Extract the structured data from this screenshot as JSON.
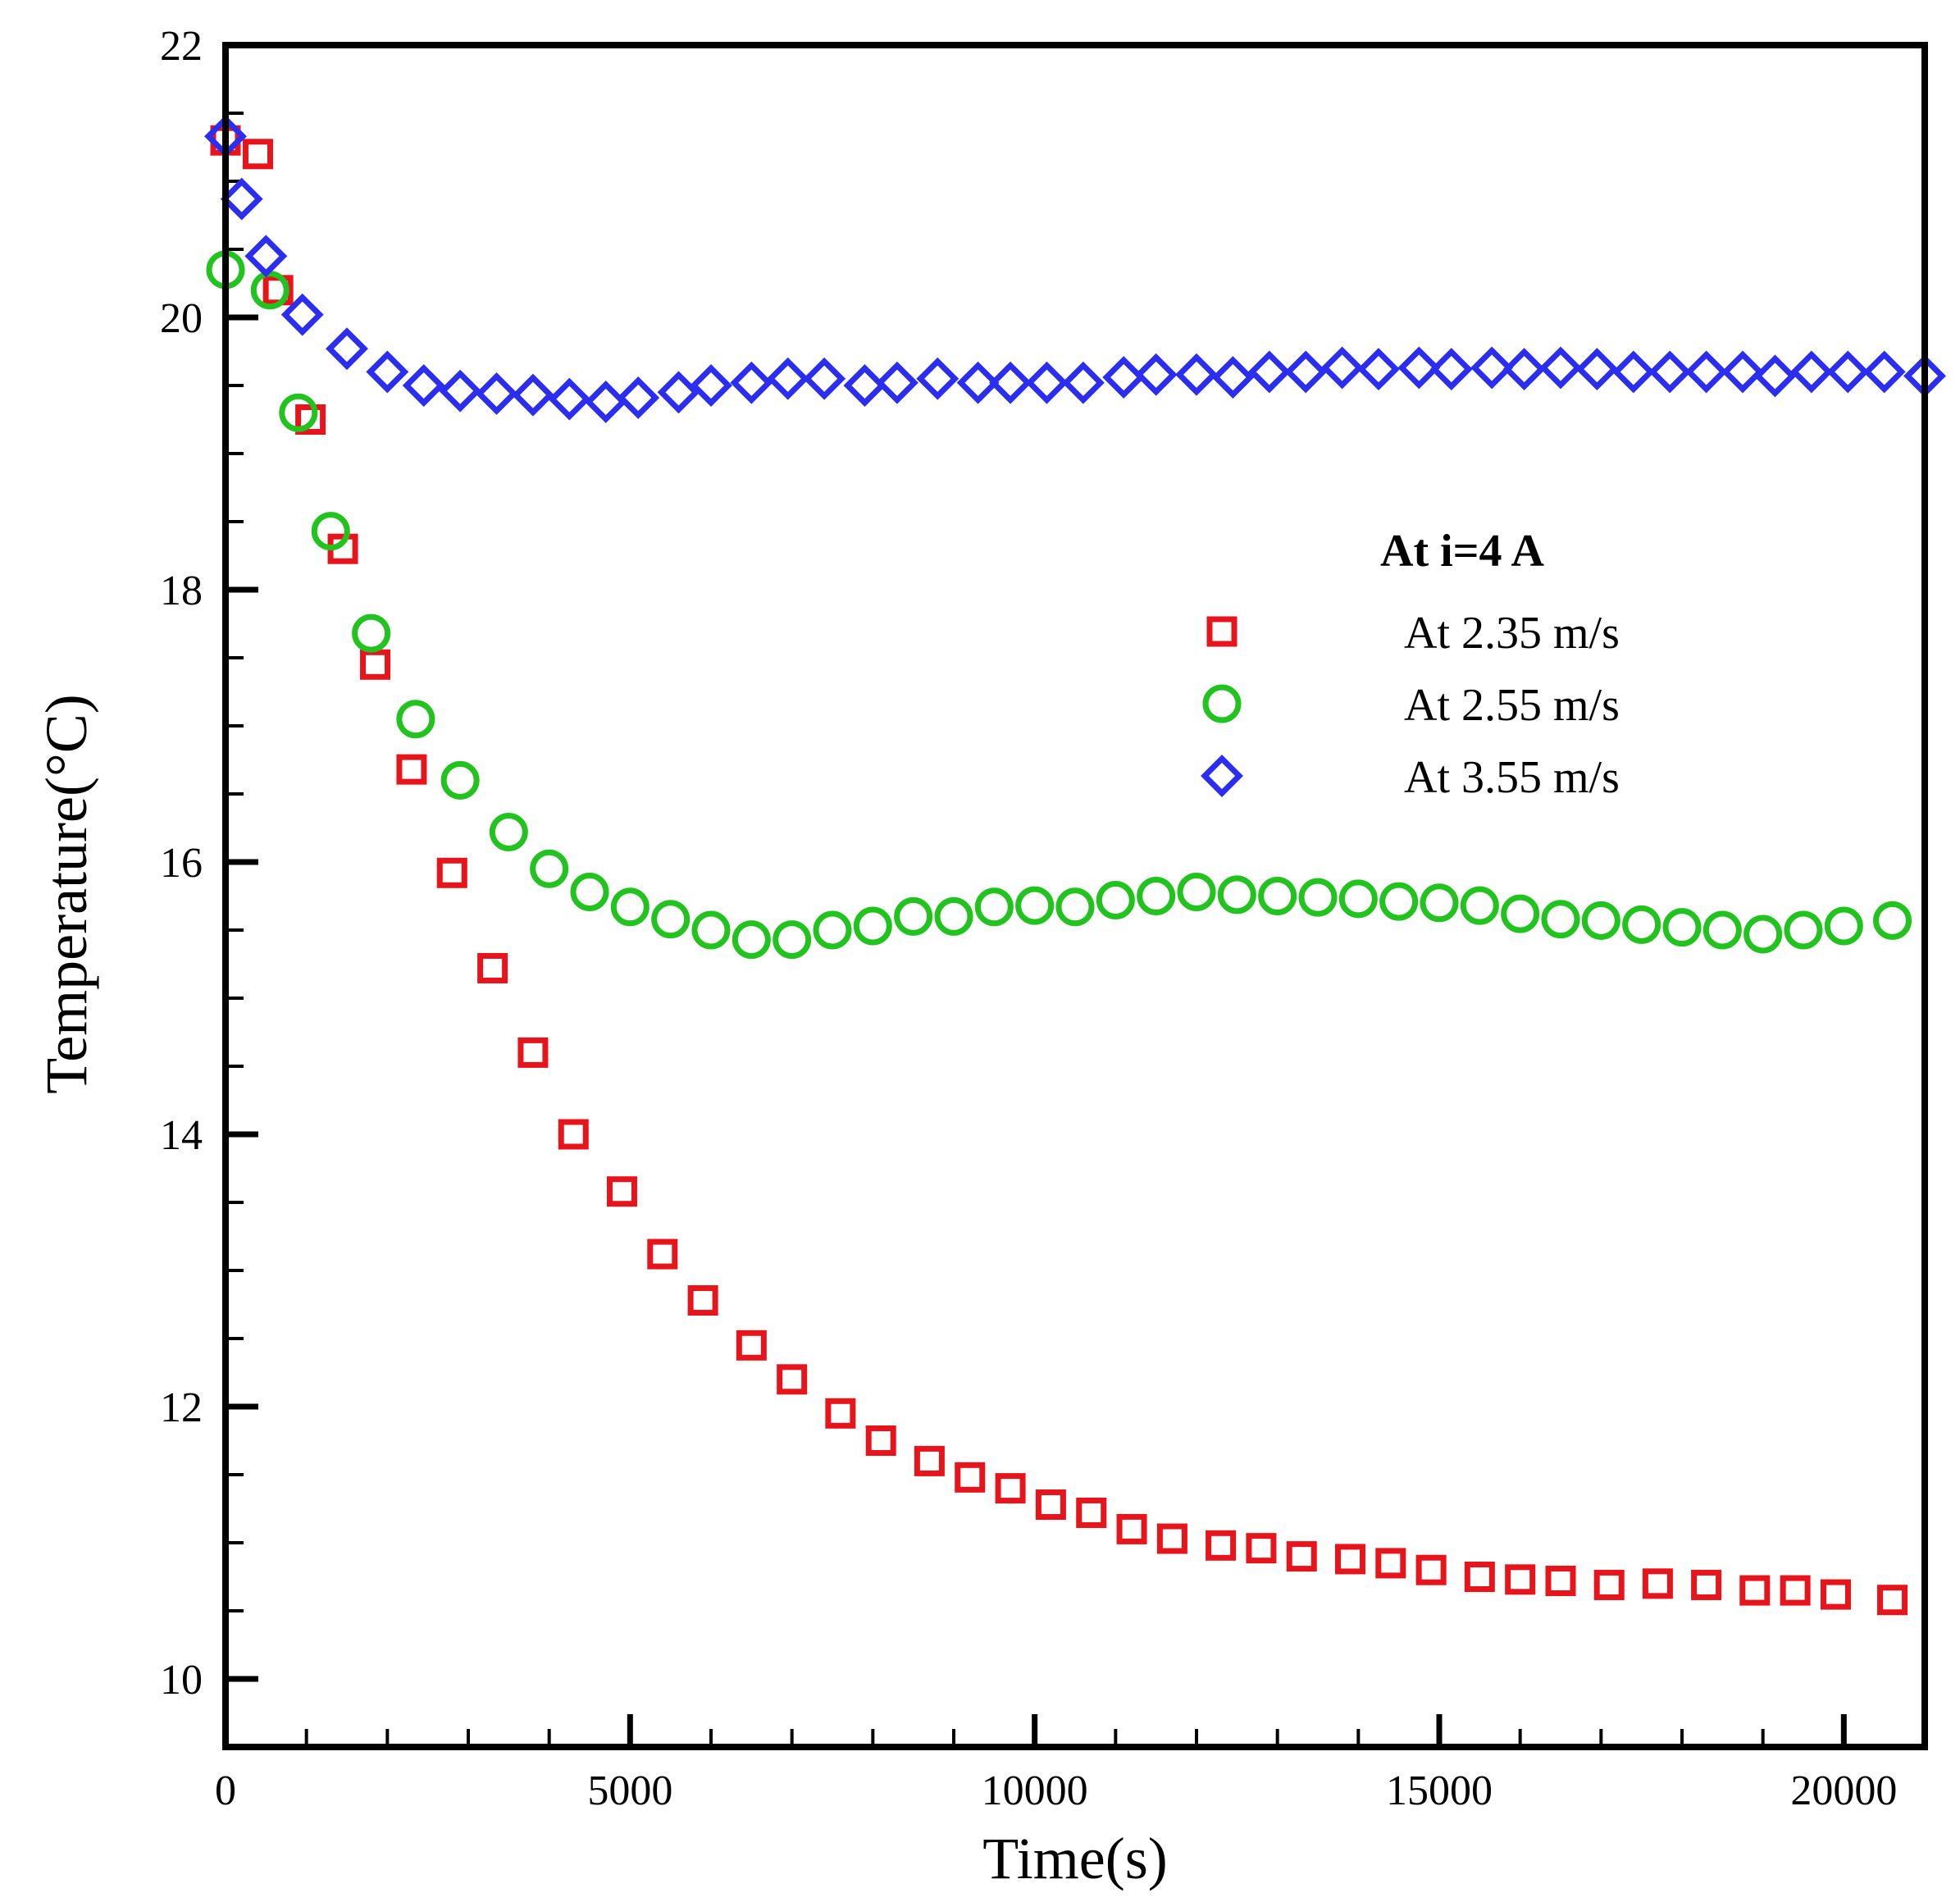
{
  "chart_data": {
    "type": "scatter",
    "xlabel": "Time(s)",
    "ylabel": "Temperature(°C)",
    "xlim": [
      0,
      21000
    ],
    "ylim": [
      9.5,
      22
    ],
    "x_ticks": [
      0,
      5000,
      10000,
      15000,
      20000
    ],
    "y_ticks": [
      10,
      12,
      14,
      16,
      18,
      20,
      22
    ],
    "grid": false,
    "legend_title": "At i=4 A",
    "legend_position": "right",
    "series": [
      {
        "name": "At 2.35 m/s",
        "marker": "square",
        "color": "#e8141c",
        "x": [
          0,
          400,
          650,
          1050,
          1450,
          1850,
          2300,
          2800,
          3300,
          3800,
          4300,
          4900,
          5400,
          5900,
          6500,
          7000,
          7600,
          8100,
          8700,
          9200,
          9700,
          10200,
          10700,
          11200,
          11700,
          12300,
          12800,
          13300,
          13900,
          14400,
          14900,
          15500,
          16000,
          16500,
          17100,
          17700,
          18300,
          18900,
          19400,
          19900,
          20600
        ],
        "y": [
          21.3,
          21.2,
          20.2,
          19.25,
          18.3,
          17.45,
          16.68,
          15.92,
          15.22,
          14.6,
          14.0,
          13.58,
          13.12,
          12.78,
          12.45,
          12.2,
          11.95,
          11.75,
          11.6,
          11.48,
          11.4,
          11.28,
          11.22,
          11.1,
          11.03,
          10.98,
          10.96,
          10.9,
          10.88,
          10.85,
          10.8,
          10.75,
          10.73,
          10.72,
          10.69,
          10.7,
          10.69,
          10.65,
          10.65,
          10.62,
          10.58
        ]
      },
      {
        "name": "At 2.55 m/s",
        "marker": "circle",
        "color": "#22c31f",
        "x": [
          0,
          550,
          900,
          1300,
          1800,
          2350,
          2900,
          3500,
          4000,
          4500,
          5000,
          5500,
          6000,
          6500,
          7000,
          7500,
          8000,
          8500,
          9000,
          9500,
          10000,
          10500,
          11000,
          11500,
          12000,
          12500,
          13000,
          13500,
          14000,
          14500,
          15000,
          15500,
          16000,
          16500,
          17000,
          17500,
          18000,
          18500,
          19000,
          19500,
          20000,
          20600
        ],
        "y": [
          20.35,
          20.2,
          19.3,
          18.43,
          17.68,
          17.05,
          16.6,
          16.22,
          15.95,
          15.78,
          15.67,
          15.58,
          15.5,
          15.43,
          15.43,
          15.5,
          15.53,
          15.6,
          15.6,
          15.67,
          15.68,
          15.67,
          15.72,
          15.75,
          15.78,
          15.76,
          15.75,
          15.74,
          15.73,
          15.71,
          15.7,
          15.68,
          15.62,
          15.58,
          15.57,
          15.54,
          15.52,
          15.5,
          15.47,
          15.5,
          15.53,
          15.57
        ]
      },
      {
        "name": "At 3.55 m/s",
        "marker": "diamond",
        "color": "#2b2ef0",
        "x": [
          0,
          200,
          500,
          950,
          1500,
          2000,
          2450,
          2900,
          3350,
          3800,
          4250,
          4700,
          5100,
          5600,
          6000,
          6500,
          6950,
          7400,
          7900,
          8300,
          8800,
          9300,
          9700,
          10150,
          10600,
          11100,
          11500,
          12000,
          12450,
          12900,
          13350,
          13800,
          14250,
          14750,
          15150,
          15650,
          16050,
          16500,
          16950,
          17400,
          17850,
          18300,
          18750,
          19150,
          19600,
          20050,
          20500,
          21000
        ],
        "y": [
          21.33,
          20.87,
          20.45,
          20.02,
          19.77,
          19.6,
          19.5,
          19.46,
          19.44,
          19.43,
          19.4,
          19.38,
          19.41,
          19.45,
          19.5,
          19.52,
          19.55,
          19.55,
          19.5,
          19.52,
          19.55,
          19.52,
          19.52,
          19.52,
          19.52,
          19.56,
          19.58,
          19.58,
          19.56,
          19.6,
          19.6,
          19.63,
          19.62,
          19.63,
          19.62,
          19.63,
          19.62,
          19.63,
          19.62,
          19.6,
          19.6,
          19.6,
          19.6,
          19.57,
          19.6,
          19.6,
          19.6,
          19.57
        ]
      }
    ]
  }
}
